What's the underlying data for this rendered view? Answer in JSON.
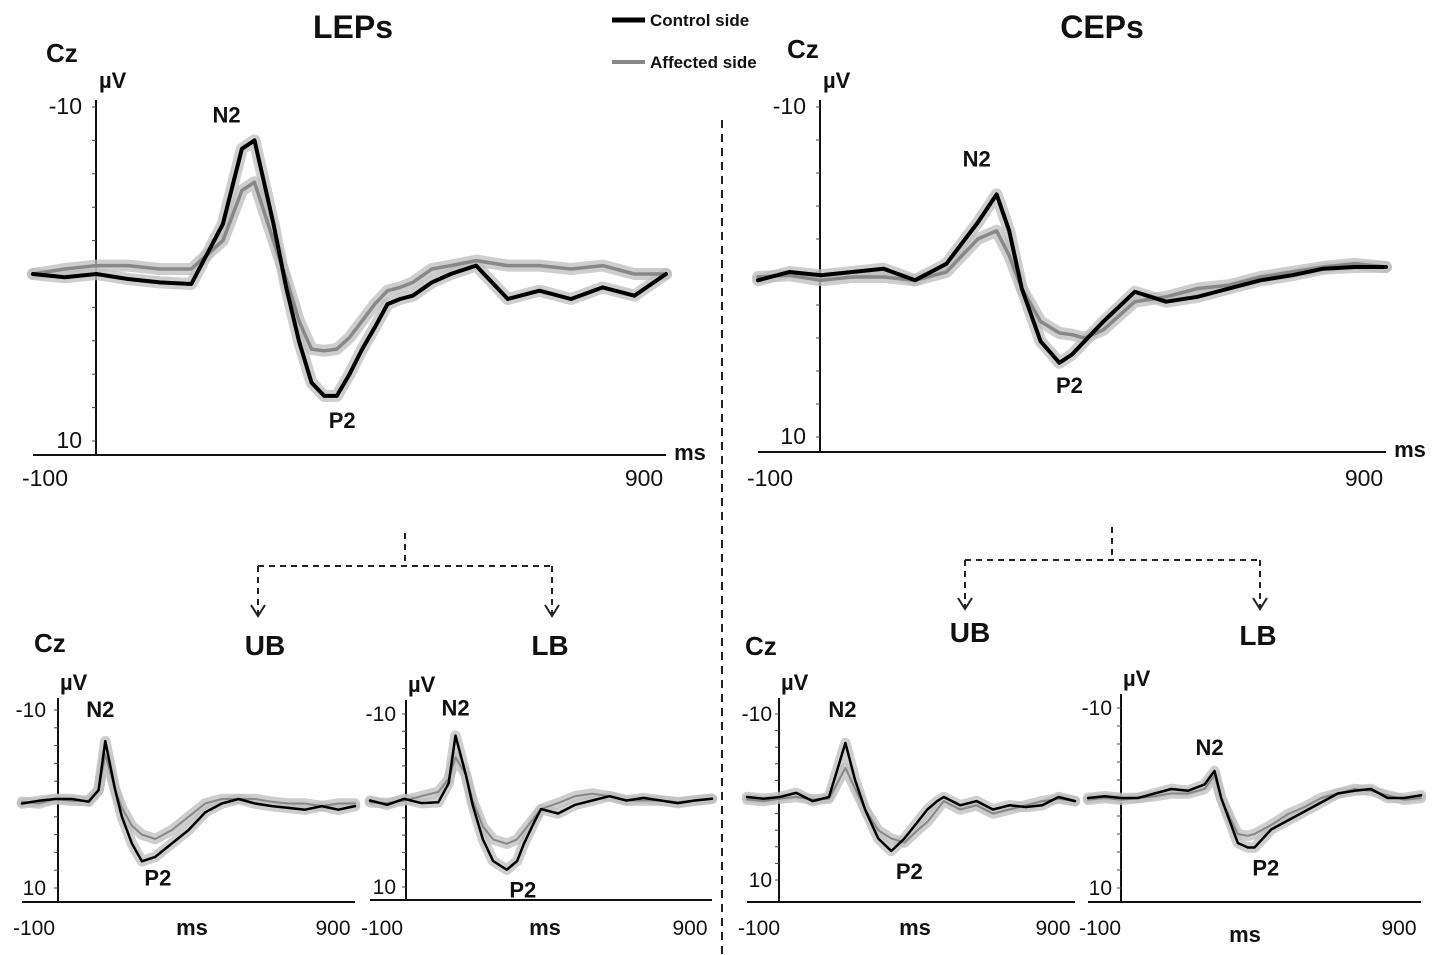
{
  "legend": {
    "entries": [
      {
        "label": "Control side",
        "color": "#000000"
      },
      {
        "label": "Affected side",
        "color": "#888888"
      }
    ],
    "placement": "top-center"
  },
  "sections": {
    "left_title": "LEPs",
    "right_title": "CEPs"
  },
  "labels": {
    "electrode": "Cz",
    "ylabel": "µV",
    "xlabel": "ms",
    "upper_branch": "UB",
    "lower_branch": "LB",
    "peak_n2": "N2",
    "peak_p2": "P2"
  },
  "colors": {
    "control": "#000000",
    "affected": "#888888",
    "band": "#bdbdbd"
  },
  "chart_data": [
    {
      "id": "leps-main",
      "type": "line",
      "xlim": [
        -100,
        900
      ],
      "ylim": [
        -10,
        10
      ],
      "y_inverted": true,
      "x_tick_labels": [
        "-100",
        "900"
      ],
      "y_tick_labels": [
        "-10",
        "10"
      ],
      "series": [
        {
          "name": "Control side",
          "x": [
            -100,
            -50,
            0,
            50,
            100,
            150,
            200,
            230,
            250,
            280,
            300,
            320,
            340,
            360,
            380,
            400,
            420,
            440,
            460,
            480,
            500,
            530,
            560,
            600,
            650,
            700,
            750,
            800,
            850,
            900
          ],
          "y": [
            0,
            0.2,
            0,
            0.3,
            0.5,
            0.6,
            -3,
            -7.5,
            -8,
            -3,
            0.8,
            4,
            6.5,
            7.3,
            7.3,
            6,
            4.5,
            3.2,
            1.8,
            1.5,
            1.3,
            0.5,
            0,
            -0.5,
            1.5,
            1,
            1.5,
            0.8,
            1.3,
            0
          ]
        },
        {
          "name": "Affected side",
          "x": [
            -100,
            -50,
            0,
            50,
            100,
            150,
            200,
            230,
            250,
            280,
            300,
            320,
            340,
            360,
            380,
            400,
            420,
            440,
            460,
            480,
            500,
            530,
            560,
            600,
            650,
            700,
            750,
            800,
            850,
            900
          ],
          "y": [
            0,
            -0.3,
            -0.5,
            -0.5,
            -0.3,
            -0.3,
            -2,
            -5,
            -5.5,
            -2,
            0.3,
            2.8,
            4.5,
            4.6,
            4.5,
            3.8,
            2.8,
            1.8,
            1,
            0.8,
            0.5,
            -0.3,
            -0.5,
            -0.8,
            -0.5,
            -0.5,
            -0.3,
            -0.5,
            0,
            0
          ]
        }
      ]
    },
    {
      "id": "ceps-main",
      "type": "line",
      "xlim": [
        -100,
        900
      ],
      "ylim": [
        -10,
        10
      ],
      "y_inverted": true,
      "x_tick_labels": [
        "-100",
        "900"
      ],
      "y_tick_labels": [
        "-10",
        "10"
      ],
      "series": [
        {
          "name": "Control side",
          "x": [
            -100,
            -50,
            0,
            50,
            100,
            150,
            200,
            250,
            280,
            300,
            320,
            350,
            380,
            400,
            420,
            450,
            500,
            550,
            600,
            650,
            700,
            750,
            800,
            850,
            900
          ],
          "y": [
            0.5,
            0,
            0.2,
            0,
            -0.2,
            0.5,
            -0.5,
            -3,
            -4.7,
            -2.5,
            1,
            4.2,
            5.5,
            5,
            4.2,
            3,
            1.2,
            1.8,
            1.5,
            1,
            0.5,
            0.2,
            -0.2,
            -0.3,
            -0.3
          ]
        },
        {
          "name": "Affected side",
          "x": [
            -100,
            -50,
            0,
            50,
            100,
            150,
            200,
            250,
            280,
            300,
            320,
            350,
            380,
            400,
            420,
            450,
            500,
            550,
            600,
            650,
            700,
            750,
            800,
            850,
            900
          ],
          "y": [
            0.3,
            0.2,
            0.5,
            0.3,
            0.3,
            0.5,
            0,
            -2,
            -2.5,
            -1,
            1,
            3,
            3.7,
            3.8,
            4,
            3.5,
            1.8,
            1.5,
            1,
            0.8,
            0.3,
            0,
            -0.3,
            -0.5,
            -0.3
          ]
        }
      ]
    },
    {
      "id": "leps-ub",
      "type": "line",
      "xlim": [
        -100,
        900
      ],
      "ylim": [
        -10,
        10
      ],
      "y_inverted": true,
      "x_tick_labels": [
        "-100",
        "900"
      ],
      "y_tick_labels": [
        "-10",
        "10"
      ],
      "series": [
        {
          "name": "Control side",
          "x": [
            -100,
            -50,
            0,
            50,
            100,
            130,
            150,
            180,
            200,
            230,
            260,
            300,
            350,
            400,
            450,
            500,
            550,
            600,
            650,
            700,
            750,
            800,
            850,
            900
          ],
          "y": [
            0.5,
            0.2,
            0,
            0,
            0.3,
            -1,
            -6.5,
            -1,
            2,
            5,
            7,
            6.5,
            5,
            3.5,
            1.5,
            0.5,
            0,
            0.5,
            0.8,
            1,
            1.2,
            0.8,
            1.2,
            0.8
          ]
        },
        {
          "name": "Affected side",
          "x": [
            -100,
            -50,
            0,
            50,
            100,
            130,
            150,
            180,
            200,
            230,
            260,
            300,
            350,
            400,
            450,
            500,
            550,
            600,
            650,
            700,
            750,
            800,
            850,
            900
          ],
          "y": [
            0.3,
            0.5,
            0,
            0.2,
            0.2,
            -1,
            -5,
            -1,
            1,
            3,
            4,
            4.5,
            3.5,
            2,
            0.5,
            0,
            0,
            0,
            0.3,
            0.5,
            0.5,
            0.8,
            0.5,
            0.5
          ]
        }
      ]
    },
    {
      "id": "leps-lb",
      "type": "line",
      "xlim": [
        -100,
        900
      ],
      "ylim": [
        -10,
        10
      ],
      "y_inverted": true,
      "x_tick_labels": [
        "-100",
        "900"
      ],
      "y_tick_labels": [
        "-10",
        "10"
      ],
      "series": [
        {
          "name": "Control side",
          "x": [
            -100,
            -50,
            0,
            50,
            100,
            130,
            150,
            180,
            200,
            230,
            260,
            300,
            330,
            350,
            380,
            400,
            450,
            500,
            550,
            600,
            650,
            700,
            750,
            800,
            850,
            900
          ],
          "y": [
            0,
            0.5,
            -0.2,
            0.3,
            0.2,
            -2,
            -7.5,
            -3,
            0.5,
            4.5,
            7,
            8,
            7,
            5,
            2.5,
            1,
            1.5,
            0.5,
            0,
            -0.5,
            0,
            -0.3,
            0,
            0.3,
            0,
            -0.2
          ]
        },
        {
          "name": "Affected side",
          "x": [
            -100,
            -50,
            0,
            50,
            100,
            130,
            150,
            180,
            200,
            230,
            260,
            300,
            330,
            350,
            380,
            400,
            450,
            500,
            550,
            600,
            650,
            700,
            750,
            800,
            850,
            900
          ],
          "y": [
            0.2,
            0.3,
            0,
            -0.5,
            -1,
            -2.5,
            -5,
            -3,
            0,
            3,
            4.5,
            5,
            4.5,
            3.5,
            2,
            1,
            0.3,
            -0.5,
            -0.8,
            -0.5,
            0,
            0,
            0,
            0.2,
            0,
            -0.2
          ]
        }
      ]
    },
    {
      "id": "ceps-ub",
      "type": "line",
      "xlim": [
        -100,
        900
      ],
      "ylim": [
        -10,
        10
      ],
      "y_inverted": true,
      "x_tick_labels": [
        "-100",
        "900"
      ],
      "y_tick_labels": [
        "-10",
        "10"
      ],
      "series": [
        {
          "name": "Control side",
          "x": [
            -100,
            -50,
            0,
            50,
            100,
            150,
            200,
            230,
            260,
            300,
            340,
            380,
            420,
            450,
            480,
            500,
            550,
            600,
            650,
            700,
            750,
            800,
            850,
            900
          ],
          "y": [
            0,
            0.2,
            0,
            -0.5,
            0.5,
            0,
            -6.5,
            -2,
            1.5,
            5,
            6.5,
            5,
            3,
            1.5,
            0.5,
            0,
            1,
            0.5,
            1.5,
            1,
            1.2,
            1,
            0,
            0.5
          ]
        },
        {
          "name": "Affected side",
          "x": [
            -100,
            -50,
            0,
            50,
            100,
            150,
            200,
            230,
            260,
            300,
            340,
            380,
            420,
            450,
            480,
            500,
            550,
            600,
            650,
            700,
            750,
            800,
            850,
            900
          ],
          "y": [
            0.3,
            0.5,
            0.2,
            0,
            0.3,
            0.2,
            -3.5,
            -1,
            1.5,
            4,
            5,
            5.5,
            4,
            3,
            1.5,
            0.5,
            1.5,
            1,
            2,
            1.5,
            1,
            0.5,
            0.2,
            0.5
          ]
        }
      ]
    },
    {
      "id": "ceps-lb",
      "type": "line",
      "xlim": [
        -100,
        900
      ],
      "ylim": [
        -10,
        10
      ],
      "y_inverted": true,
      "x_tick_labels": [
        "-100",
        "900"
      ],
      "y_tick_labels": [
        "-10",
        "10"
      ],
      "series": [
        {
          "name": "Control side",
          "x": [
            -100,
            -50,
            0,
            50,
            100,
            150,
            200,
            250,
            280,
            300,
            330,
            350,
            380,
            400,
            450,
            500,
            550,
            600,
            650,
            700,
            750,
            800,
            850,
            900
          ],
          "y": [
            0,
            -0.2,
            0,
            0,
            -0.5,
            -1,
            -0.8,
            -1.5,
            -3,
            0,
            3,
            5,
            5.5,
            5.5,
            3.5,
            2.5,
            1.5,
            0.5,
            -0.5,
            -0.8,
            -1,
            0,
            0,
            -0.3
          ]
        },
        {
          "name": "Affected side",
          "x": [
            -100,
            -50,
            0,
            50,
            100,
            150,
            200,
            250,
            280,
            300,
            330,
            350,
            380,
            400,
            450,
            500,
            550,
            600,
            650,
            700,
            750,
            800,
            850,
            900
          ],
          "y": [
            0.2,
            0,
            0.2,
            0,
            -0.2,
            -0.5,
            -0.5,
            -1,
            -2.5,
            0,
            2.5,
            4,
            4.2,
            4,
            3,
            1.8,
            1,
            0,
            -0.5,
            -1,
            -0.8,
            -0.3,
            0.2,
            0
          ]
        }
      ]
    }
  ]
}
